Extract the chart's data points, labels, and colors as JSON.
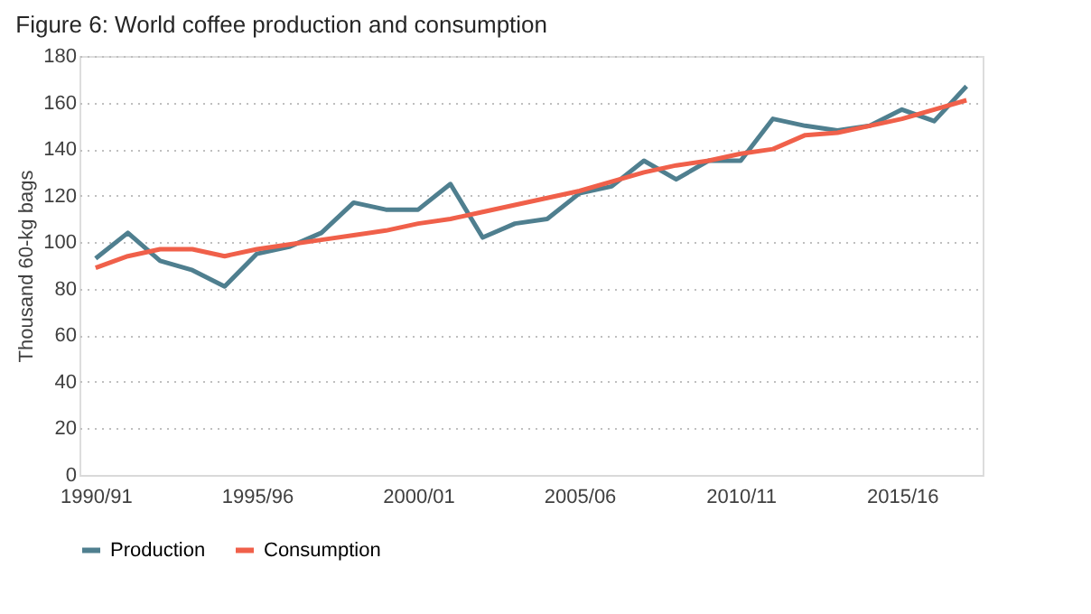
{
  "chart_data": {
    "type": "line",
    "title": "Figure 6: World coffee production and consumption",
    "ylabel": "Thousand 60-kg bags",
    "categories": [
      "1990/91",
      null,
      null,
      null,
      null,
      "1995/96",
      null,
      null,
      null,
      null,
      "2000/01",
      null,
      null,
      null,
      null,
      "2005/06",
      null,
      null,
      null,
      null,
      "2010/11",
      null,
      null,
      null,
      null,
      "2015/16",
      null,
      null
    ],
    "series": [
      {
        "name": "Production",
        "color": "#4f7f8f",
        "values": [
          93,
          104,
          92,
          88,
          81,
          95,
          98,
          104,
          117,
          114,
          114,
          125,
          102,
          108,
          110,
          121,
          124,
          135,
          127,
          135,
          135,
          153,
          150,
          148,
          150,
          157,
          152,
          167
        ]
      },
      {
        "name": "Consumption",
        "color": "#f0604a",
        "values": [
          89,
          94,
          97,
          97,
          94,
          97,
          99,
          101,
          103,
          105,
          108,
          110,
          113,
          116,
          119,
          122,
          126,
          130,
          133,
          135,
          138,
          140,
          146,
          147,
          150,
          153,
          157,
          161
        ]
      }
    ],
    "ylim": [
      0,
      180
    ],
    "yticks": [
      0,
      20,
      40,
      60,
      80,
      100,
      120,
      140,
      160,
      180
    ],
    "grid": "y",
    "legend": "bottom",
    "line_style": "solid"
  }
}
